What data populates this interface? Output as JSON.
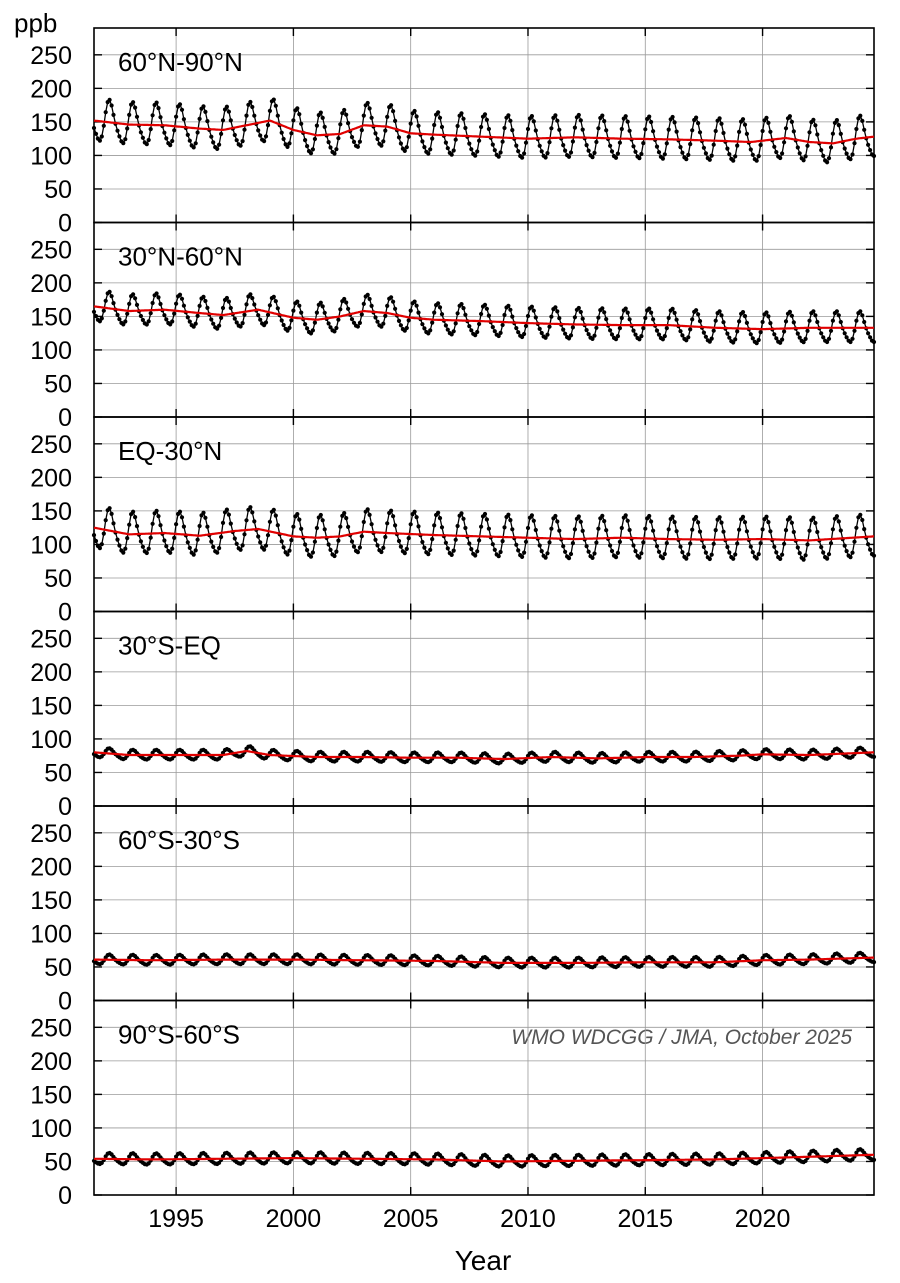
{
  "chart_data": {
    "type": "line",
    "ylabel": "ppb",
    "xlabel": "Year",
    "credit": "WMO WDCGG / JMA, October 2025",
    "xlim": [
      1991.5,
      2024.75
    ],
    "ylim": [
      0,
      290
    ],
    "x_ticks": [
      1995,
      2000,
      2005,
      2010,
      2015,
      2020
    ],
    "y_ticks": [
      0,
      50,
      100,
      150,
      200,
      250
    ],
    "grid": true,
    "series_names": [
      "monthly mean (black dots)",
      "deseasonalized trend (red line)"
    ],
    "colors": {
      "monthly": "#000000",
      "trend": "#e00000",
      "grid": "#9a9a9a"
    },
    "panels": [
      {
        "label": "60°N-90°N",
        "monthly_season_amplitude": 30,
        "trend": {
          "x": [
            1991.5,
            1993,
            1994.5,
            1996,
            1997,
            1998,
            1999,
            2000,
            2001,
            2002,
            2003,
            2004,
            2005,
            2006,
            2008,
            2010,
            2012,
            2014,
            2016,
            2018,
            2019.5,
            2021,
            2022,
            2023,
            2024,
            2024.75
          ],
          "y": [
            152,
            146,
            145,
            140,
            138,
            145,
            152,
            138,
            130,
            132,
            145,
            143,
            133,
            131,
            128,
            125,
            127,
            125,
            124,
            122,
            120,
            126,
            120,
            118,
            125,
            128
          ]
        }
      },
      {
        "label": "30°N-60°N",
        "monthly_season_amplitude": 22,
        "trend": {
          "x": [
            1991.5,
            1993,
            1994.5,
            1996,
            1997,
            1998.5,
            2000,
            2001,
            2002,
            2003,
            2004,
            2005,
            2006,
            2008,
            2010,
            2012,
            2014,
            2016,
            2018,
            2020,
            2022,
            2024.75
          ],
          "y": [
            165,
            158,
            160,
            155,
            152,
            160,
            148,
            145,
            150,
            158,
            155,
            148,
            145,
            143,
            140,
            138,
            137,
            137,
            133,
            131,
            133,
            133
          ]
        }
      },
      {
        "label": "EQ-30°N",
        "monthly_season_amplitude": 30,
        "trend": {
          "x": [
            1991.5,
            1993,
            1994.5,
            1996,
            1997.5,
            1998.5,
            2000,
            2001,
            2002,
            2003,
            2004,
            2006,
            2008,
            2010,
            2012,
            2014,
            2016,
            2018,
            2020,
            2022,
            2024.75
          ],
          "y": [
            125,
            115,
            117,
            113,
            120,
            123,
            112,
            110,
            112,
            119,
            117,
            114,
            112,
            110,
            108,
            110,
            108,
            107,
            108,
            106,
            112
          ]
        }
      },
      {
        "label": "30°S-EQ",
        "monthly_season_amplitude": 7,
        "trend": {
          "x": [
            1991.5,
            1993,
            1995,
            1997,
            1998,
            1999,
            2001,
            2003,
            2005,
            2007,
            2009,
            2011,
            2013,
            2015,
            2017,
            2019,
            2020,
            2022,
            2024.75
          ],
          "y": [
            80,
            76,
            76,
            76,
            82,
            76,
            73,
            73,
            72,
            72,
            70,
            73,
            71,
            73,
            73,
            75,
            77,
            76,
            80
          ]
        }
      },
      {
        "label": "60°S-30°S",
        "monthly_season_amplitude": 7,
        "trend": {
          "x": [
            1991.5,
            1994,
            1997,
            2000,
            2003,
            2006,
            2009,
            2012,
            2015,
            2018,
            2020,
            2022,
            2024.75
          ],
          "y": [
            61,
            60,
            61,
            61,
            60,
            59,
            56,
            56,
            57,
            57,
            60,
            61,
            64
          ]
        }
      },
      {
        "label": "90°S-60°S",
        "monthly_season_amplitude": 8,
        "trend": {
          "x": [
            1991.5,
            1994,
            1997,
            2000,
            2003,
            2006,
            2009,
            2012,
            2015,
            2018,
            2020,
            2022,
            2024.75
          ],
          "y": [
            54,
            53,
            54,
            55,
            54,
            53,
            50,
            51,
            52,
            53,
            55,
            57,
            60
          ]
        }
      }
    ]
  }
}
